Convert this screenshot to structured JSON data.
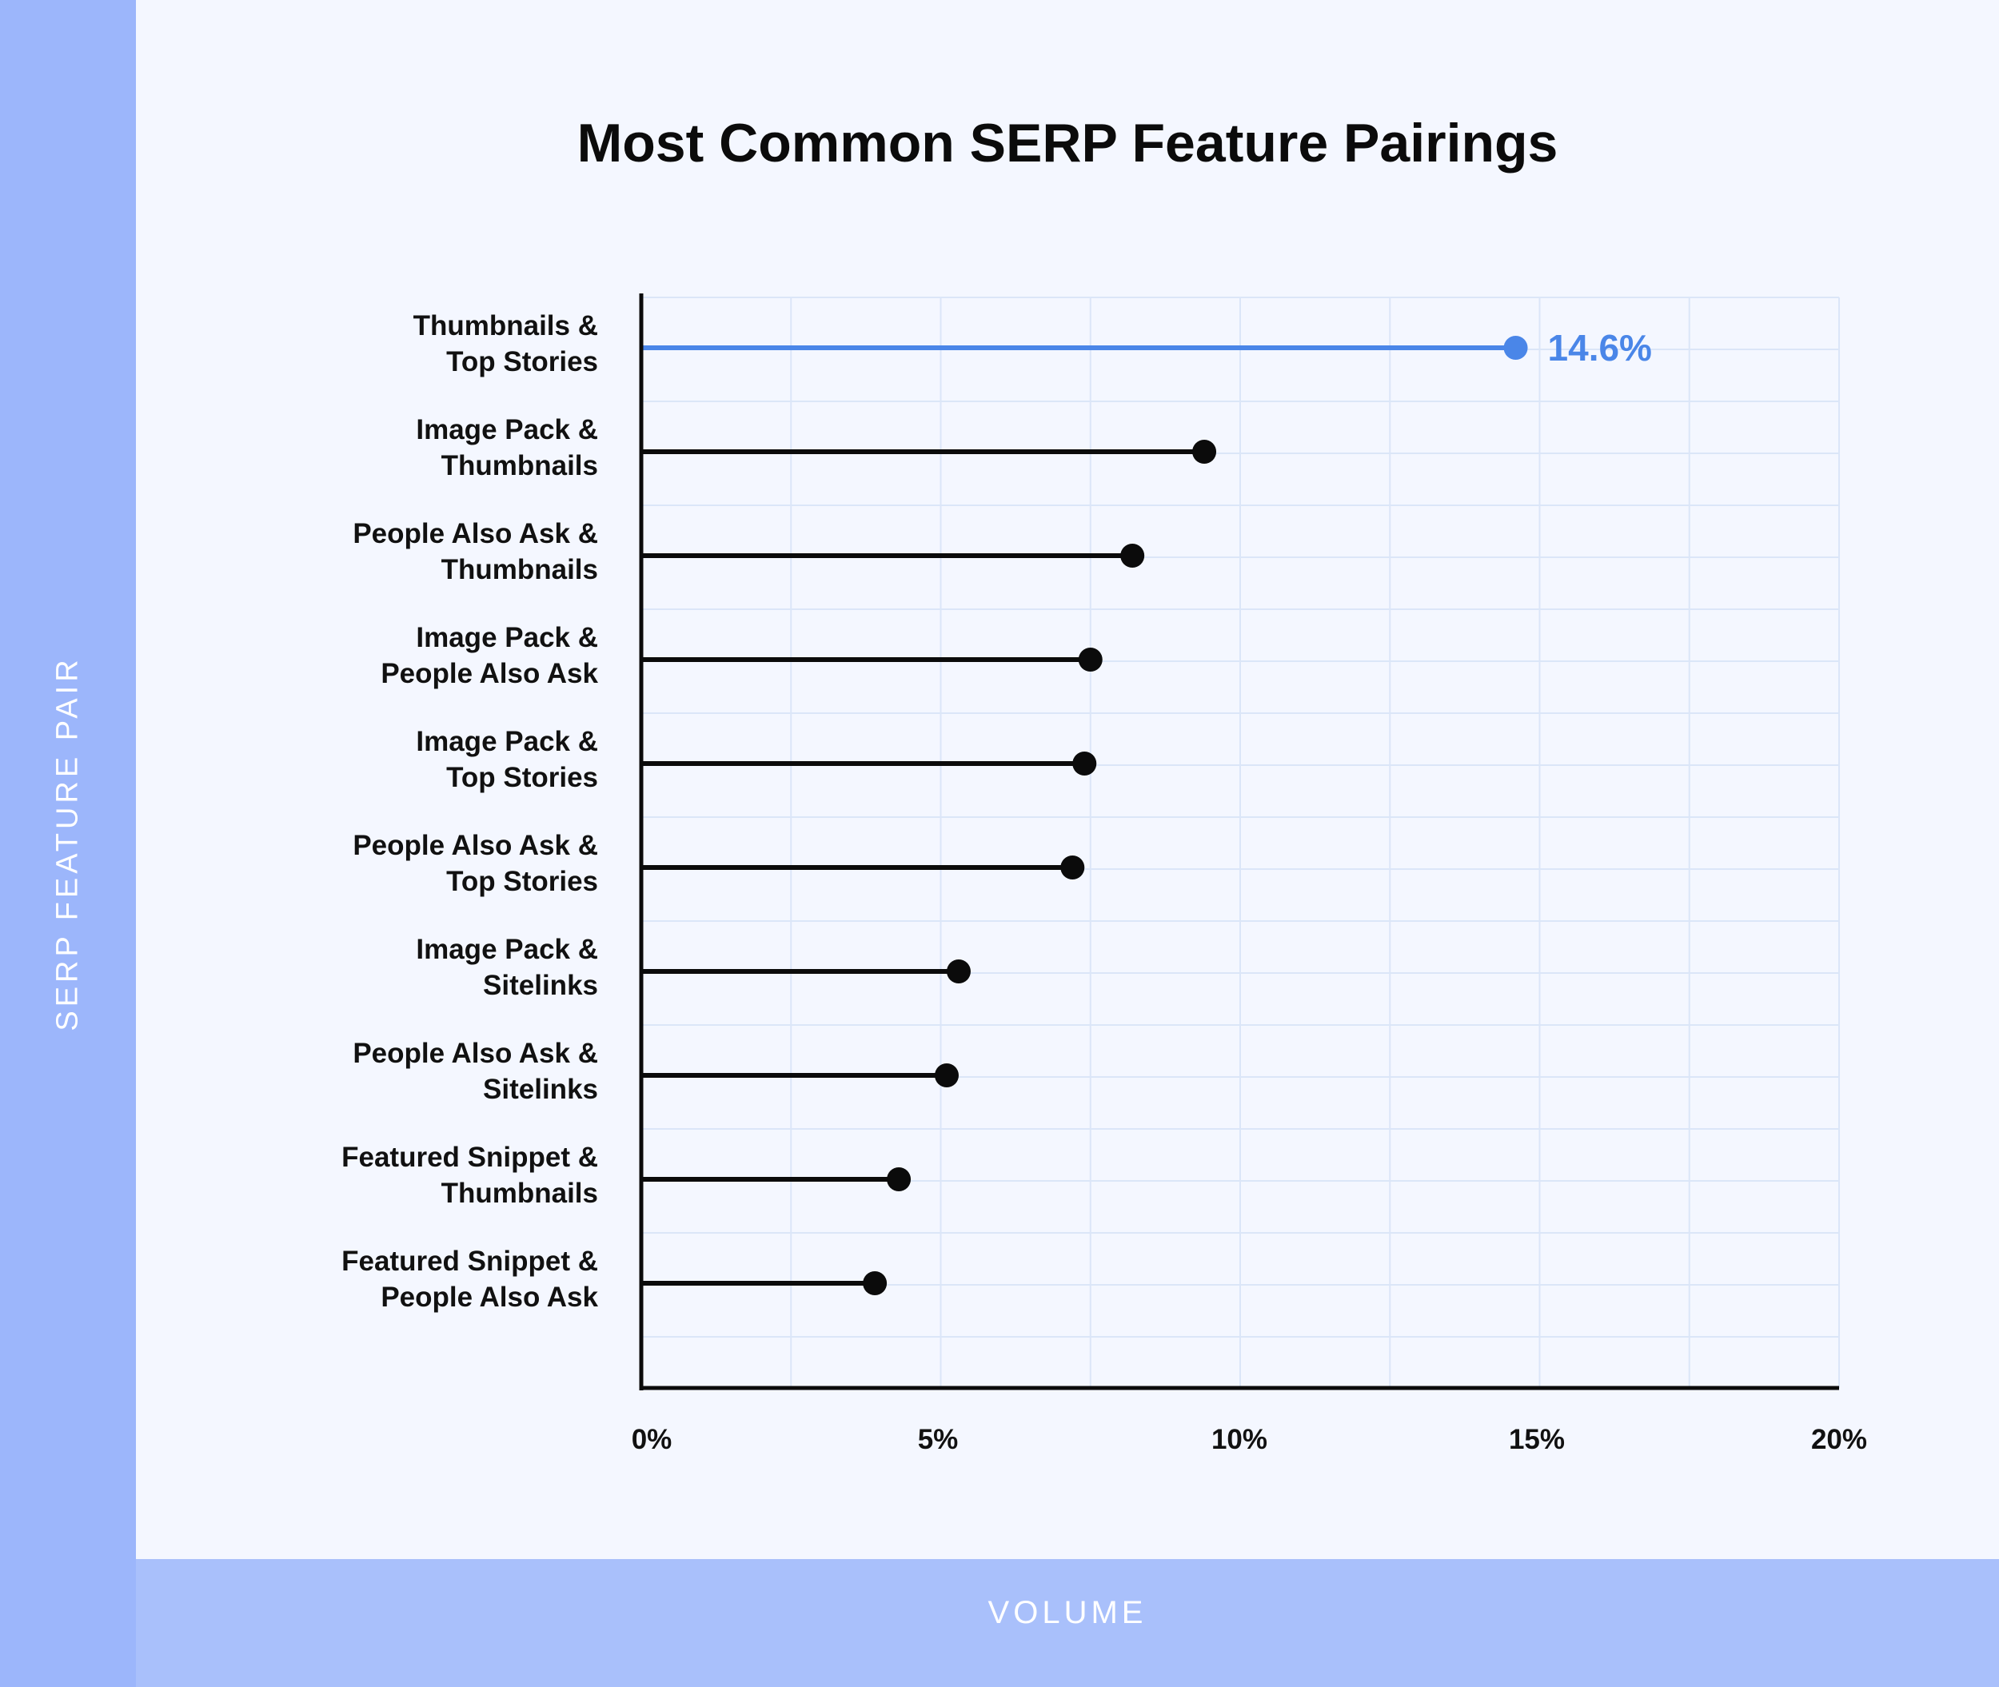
{
  "chart_data": {
    "type": "lollipop",
    "title": "Most Common SERP Feature Pairings",
    "xlabel": "VOLUME",
    "ylabel": "SERP FEATURE PAIR",
    "xlim": [
      0,
      20
    ],
    "xticks": [
      "0%",
      "5%",
      "10%",
      "15%",
      "20%"
    ],
    "grid": true,
    "highlight_color": "#4a86e8",
    "default_color": "#0b0b0b",
    "grid_color": "#dbe6f8",
    "categories": [
      [
        "Thumbnails &",
        "Top Stories"
      ],
      [
        "Image Pack &",
        "Thumbnails"
      ],
      [
        "People Also Ask &",
        "Thumbnails"
      ],
      [
        "Image Pack &",
        "People Also Ask"
      ],
      [
        "Image Pack &",
        "Top Stories"
      ],
      [
        "People Also Ask &",
        "Top Stories"
      ],
      [
        "Image Pack &",
        "Sitelinks"
      ],
      [
        "People Also Ask &",
        "Sitelinks"
      ],
      [
        "Featured Snippet &",
        "Thumbnails"
      ],
      [
        "Featured Snippet &",
        "People Also Ask"
      ]
    ],
    "values": [
      14.6,
      9.4,
      8.2,
      7.5,
      7.4,
      7.2,
      5.3,
      5.1,
      4.3,
      3.9
    ],
    "data_labels": [
      "14.6%",
      "",
      "",
      "",
      "",
      "",
      "",
      "",
      "",
      ""
    ],
    "highlighted_index": 0
  }
}
